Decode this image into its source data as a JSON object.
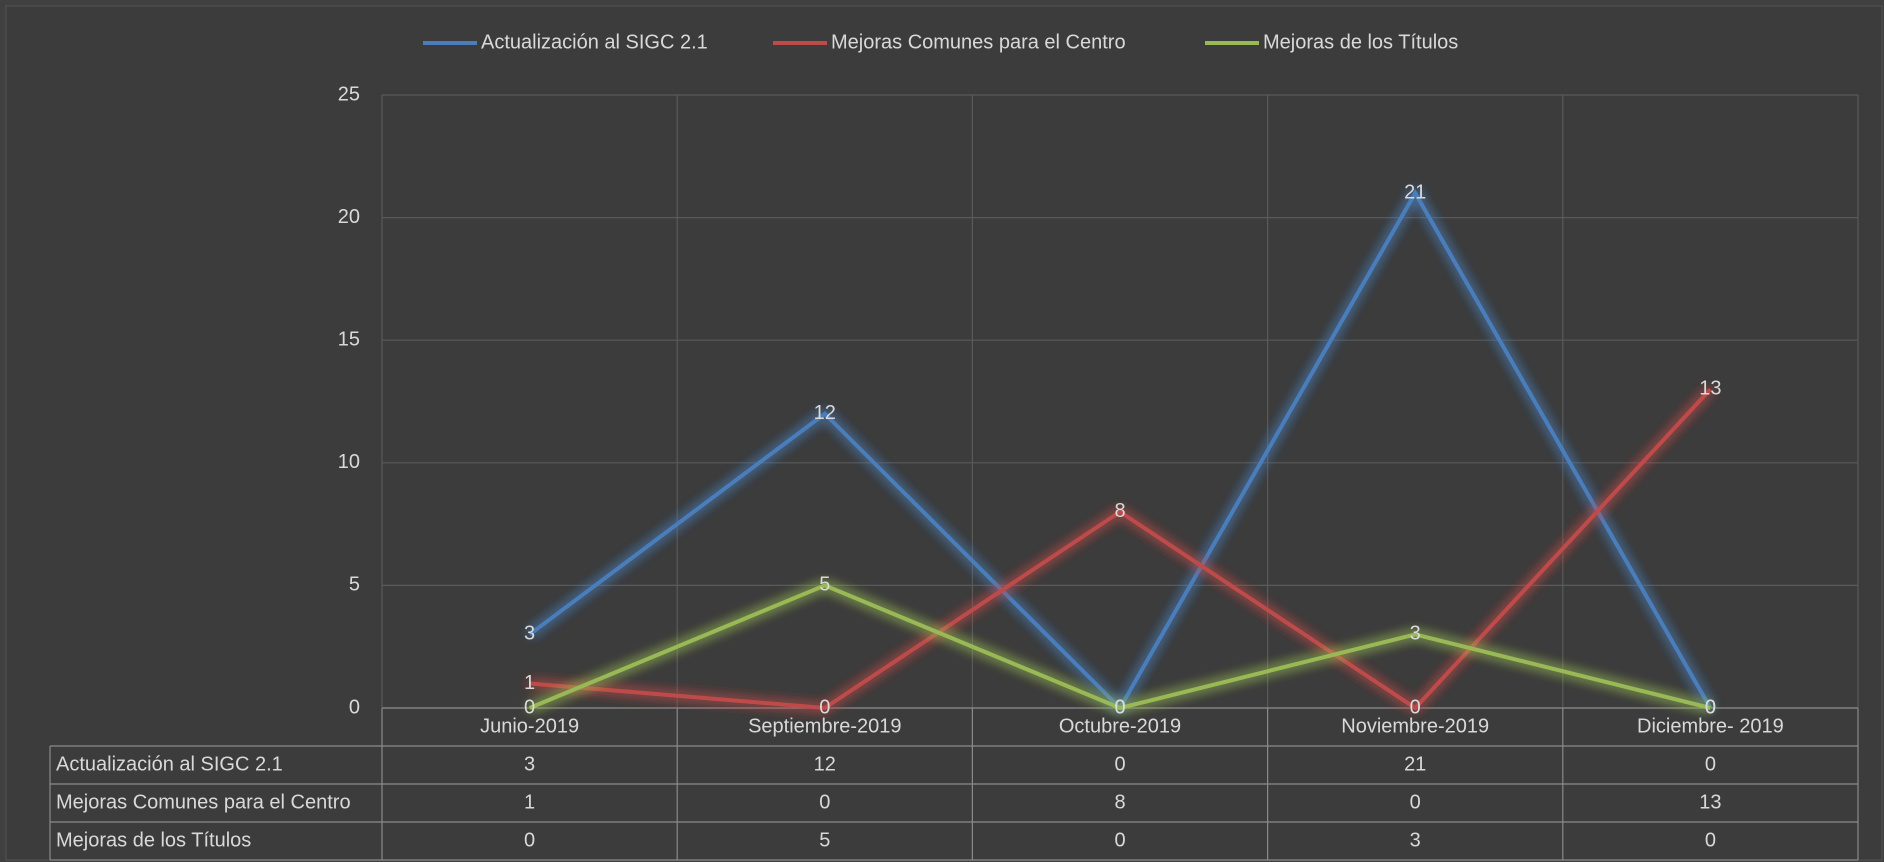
{
  "chart_data": {
    "type": "line",
    "categories": [
      "Junio-2019",
      "Septiembre-2019",
      "Octubre-2019",
      "Noviembre-2019",
      "Diciembre- 2019"
    ],
    "series": [
      {
        "name": "Actualización al SIGC 2.1",
        "color": "#4a7ebb",
        "values": [
          3,
          12,
          0,
          21,
          0
        ]
      },
      {
        "name": "Mejoras Comunes para el Centro",
        "color": "#be4b48",
        "values": [
          1,
          0,
          8,
          0,
          13
        ]
      },
      {
        "name": "Mejoras de los Títulos",
        "color": "#98b954",
        "values": [
          0,
          5,
          0,
          3,
          0
        ]
      }
    ],
    "ylim": [
      0,
      25
    ],
    "yticks": [
      0,
      5,
      10,
      15,
      20,
      25
    ],
    "grid": true,
    "legend": "top",
    "data_table": true
  }
}
